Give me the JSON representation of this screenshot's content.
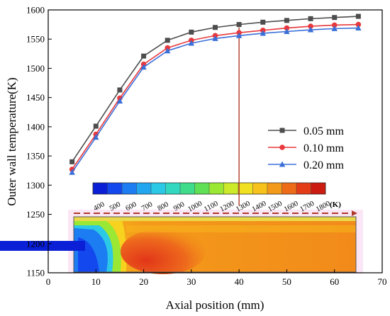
{
  "chart_data": {
    "type": "line",
    "xlabel": "Axial position (mm)",
    "ylabel": "Outer wall temperature(K)",
    "xlim": [
      0,
      70
    ],
    "ylim": [
      1150,
      1600
    ],
    "x_ticks": [
      0,
      10,
      20,
      30,
      40,
      50,
      60,
      70
    ],
    "y_ticks": [
      1150,
      1200,
      1250,
      1300,
      1350,
      1400,
      1450,
      1500,
      1550,
      1600
    ],
    "x": [
      5,
      10,
      15,
      20,
      25,
      30,
      35,
      40,
      45,
      50,
      55,
      60,
      65
    ],
    "series": [
      {
        "name": "0.05 mm",
        "color": "#4d4d4d",
        "marker": "square",
        "values": [
          1340,
          1401,
          1463,
          1521,
          1548,
          1562,
          1570,
          1575,
          1579,
          1582,
          1585,
          1587,
          1589
        ]
      },
      {
        "name": "0.10 mm",
        "color": "#e8383c",
        "marker": "circle",
        "values": [
          1327,
          1387,
          1449,
          1507,
          1535,
          1548,
          1556,
          1561,
          1565,
          1569,
          1572,
          1574,
          1575
        ]
      },
      {
        "name": "0.20 mm",
        "color": "#3a6fd8",
        "marker": "triangle",
        "values": [
          1322,
          1382,
          1444,
          1502,
          1530,
          1543,
          1551,
          1556,
          1560,
          1563,
          1566,
          1568,
          1569
        ]
      }
    ],
    "grid": false,
    "legend_position": "right-middle",
    "marker_line_x": 40,
    "colorbar": {
      "labels": [
        "400",
        "500",
        "600",
        "700",
        "800",
        "900",
        "1000",
        "1100",
        "1200",
        "1300",
        "1400",
        "1500",
        "1600",
        "1700",
        "1800"
      ],
      "unit": "(K)",
      "colors": [
        "#0a1fd6",
        "#1248ee",
        "#1c7cf2",
        "#22a6f0",
        "#2cc9e6",
        "#33d8c0",
        "#3fdc8c",
        "#5fe055",
        "#9ae834",
        "#cdea2a",
        "#f0e020",
        "#f7c21c",
        "#f49a1a",
        "#ee6c18",
        "#e43c16",
        "#cc1c12"
      ]
    }
  }
}
